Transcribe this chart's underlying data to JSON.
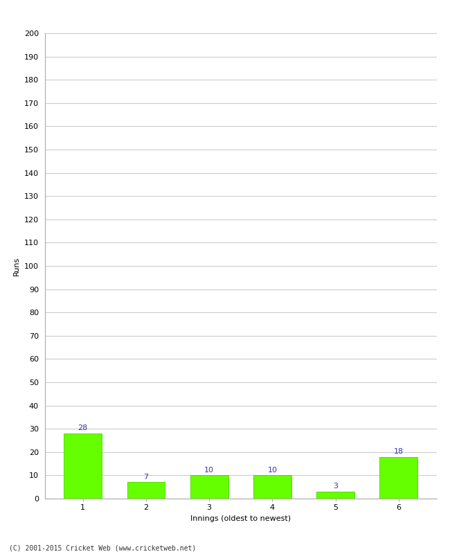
{
  "categories": [
    "1",
    "2",
    "3",
    "4",
    "5",
    "6"
  ],
  "values": [
    28,
    7,
    10,
    10,
    3,
    18
  ],
  "bar_color": "#66ff00",
  "bar_edge_color": "#55dd00",
  "xlabel": "Innings (oldest to newest)",
  "ylabel": "Runs",
  "ylim": [
    0,
    200
  ],
  "yticks": [
    0,
    10,
    20,
    30,
    40,
    50,
    60,
    70,
    80,
    90,
    100,
    110,
    120,
    130,
    140,
    150,
    160,
    170,
    180,
    190,
    200
  ],
  "label_color": "#3333aa",
  "label_fontsize": 8,
  "footer": "(C) 2001-2015 Cricket Web (www.cricketweb.net)",
  "background_color": "#ffffff",
  "grid_color": "#cccccc",
  "tick_label_fontsize": 8,
  "axis_label_fontsize": 8,
  "bar_width": 0.6
}
